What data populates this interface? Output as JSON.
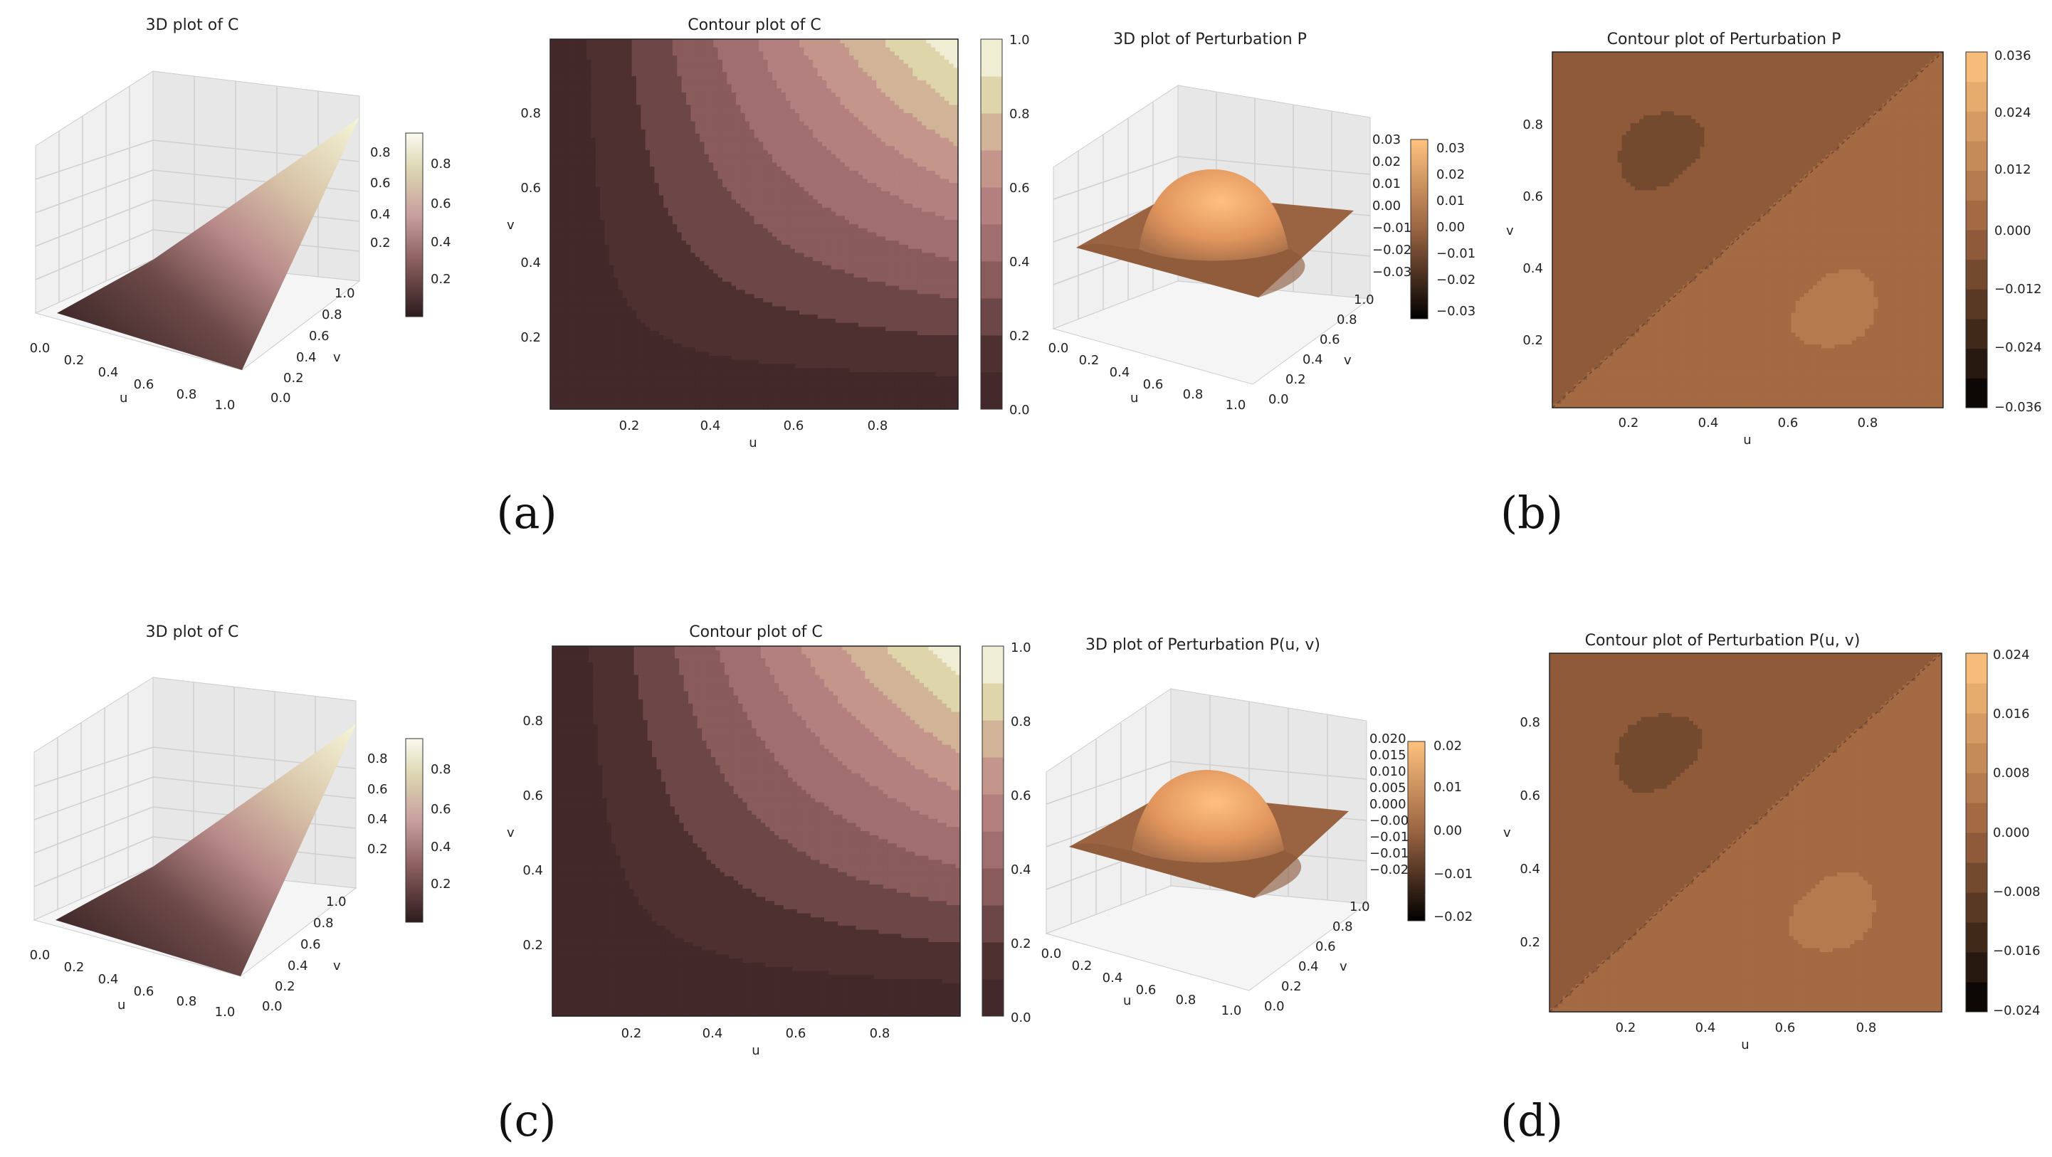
{
  "subfigures": [
    "(a)",
    "(b)",
    "(c)",
    "(d)"
  ],
  "chart_data": [
    {
      "id": "a1",
      "type": "surface",
      "title": "3D plot of C",
      "xlabel": "u",
      "ylabel": "v",
      "x_ticks": [
        "0.0",
        "0.2",
        "0.4",
        "0.6",
        "0.8",
        "1.0"
      ],
      "y_ticks": [
        "0.0",
        "0.2",
        "0.4",
        "0.6",
        "0.8",
        "1.0"
      ],
      "z_ticks": [
        "0.2",
        "0.4",
        "0.6",
        "0.8"
      ],
      "colorbar_ticks": [
        "0.2",
        "0.4",
        "0.6",
        "0.8"
      ],
      "colorbar_range": [
        0.0,
        0.95
      ],
      "colormap": "pink",
      "zlim": [
        0,
        1
      ]
    },
    {
      "id": "a2",
      "type": "contour",
      "title": "Contour plot of C",
      "xlabel": "u",
      "ylabel": "v",
      "x_ticks": [
        "0.2",
        "0.4",
        "0.6",
        "0.8"
      ],
      "y_ticks": [
        "0.2",
        "0.4",
        "0.6",
        "0.8"
      ],
      "colorbar_ticks": [
        "0.0",
        "0.2",
        "0.4",
        "0.6",
        "0.8",
        "1.0"
      ],
      "levels": [
        0.0,
        0.1,
        0.2,
        0.3,
        0.4,
        0.5,
        0.6,
        0.7,
        0.8,
        0.9,
        1.0
      ],
      "xlim": [
        0.01,
        0.99
      ],
      "ylim": [
        0.01,
        0.99
      ],
      "colormap": "pink",
      "theta": 0.45
    },
    {
      "id": "b1",
      "type": "surface",
      "title": "3D plot of Perturbation P",
      "xlabel": "u",
      "ylabel": "v",
      "x_ticks": [
        "0.0",
        "0.2",
        "0.4",
        "0.6",
        "0.8",
        "1.0"
      ],
      "y_ticks": [
        "0.0",
        "0.2",
        "0.4",
        "0.6",
        "0.8",
        "1.0"
      ],
      "z_ticks": [
        "0.03",
        "0.02",
        "0.01",
        "0.00",
        "−0.01",
        "−0.02",
        "−0.03"
      ],
      "colorbar_ticks": [
        "0.03",
        "0.02",
        "0.01",
        "0.00",
        "−0.01",
        "−0.02",
        "−0.03"
      ],
      "colorbar_range": [
        -0.035,
        0.035
      ],
      "colormap": "copper"
    },
    {
      "id": "b2",
      "type": "contour",
      "title": "Contour plot of Perturbation P",
      "xlabel": "u",
      "ylabel": "v",
      "x_ticks": [
        "0.2",
        "0.4",
        "0.6",
        "0.8"
      ],
      "y_ticks": [
        "0.2",
        "0.4",
        "0.6",
        "0.8"
      ],
      "colorbar_ticks": [
        "0.036",
        "0.024",
        "0.012",
        "0.000",
        "−0.012",
        "−0.024",
        "−0.036"
      ],
      "levels": [
        -0.036,
        -0.03,
        -0.024,
        -0.018,
        -0.012,
        -0.006,
        0.0,
        0.006,
        0.012,
        0.018,
        0.024,
        0.03,
        0.036
      ],
      "xlim": [
        0.01,
        0.99
      ],
      "ylim": [
        0.01,
        0.99
      ],
      "colormap": "copper",
      "amplitude": 0.036
    },
    {
      "id": "c1",
      "type": "surface",
      "title": "3D plot of C",
      "xlabel": "u",
      "ylabel": "v",
      "x_ticks": [
        "0.0",
        "0.2",
        "0.4",
        "0.6",
        "0.8",
        "1.0"
      ],
      "y_ticks": [
        "0.0",
        "0.2",
        "0.4",
        "0.6",
        "0.8",
        "1.0"
      ],
      "z_ticks": [
        "0.2",
        "0.4",
        "0.6",
        "0.8"
      ],
      "colorbar_ticks": [
        "0.2",
        "0.4",
        "0.6",
        "0.8"
      ],
      "colorbar_range": [
        0.0,
        0.95
      ],
      "colormap": "pink",
      "zlim": [
        0,
        1
      ]
    },
    {
      "id": "c2",
      "type": "contour",
      "title": "Contour plot of C",
      "xlabel": "u",
      "ylabel": "v",
      "x_ticks": [
        "0.2",
        "0.4",
        "0.6",
        "0.8"
      ],
      "y_ticks": [
        "0.2",
        "0.4",
        "0.6",
        "0.8"
      ],
      "colorbar_ticks": [
        "0.0",
        "0.2",
        "0.4",
        "0.6",
        "0.8",
        "1.0"
      ],
      "levels": [
        0.0,
        0.1,
        0.2,
        0.3,
        0.4,
        0.5,
        0.6,
        0.7,
        0.8,
        0.9,
        1.0
      ],
      "xlim": [
        0.01,
        0.99
      ],
      "ylim": [
        0.01,
        0.99
      ],
      "colormap": "pink",
      "theta": 0.3
    },
    {
      "id": "d1",
      "type": "surface",
      "title": "3D plot of Perturbation P(u, v)",
      "xlabel": "u",
      "ylabel": "v",
      "x_ticks": [
        "0.0",
        "0.2",
        "0.4",
        "0.6",
        "0.8",
        "1.0"
      ],
      "y_ticks": [
        "0.0",
        "0.2",
        "0.4",
        "0.6",
        "0.8",
        "1.0"
      ],
      "z_ticks": [
        "0.020",
        "0.015",
        "0.010",
        "0.005",
        "0.000",
        "−0.005",
        "−0.010",
        "−0.015",
        "−0.020"
      ],
      "colorbar_ticks": [
        "0.02",
        "0.01",
        "0.00",
        "−0.01",
        "−0.02"
      ],
      "colorbar_range": [
        -0.024,
        0.024
      ],
      "colormap": "copper"
    },
    {
      "id": "d2",
      "type": "contour",
      "title": "Contour plot of Perturbation P(u, v)",
      "xlabel": "u",
      "ylabel": "v",
      "x_ticks": [
        "0.2",
        "0.4",
        "0.6",
        "0.8"
      ],
      "y_ticks": [
        "0.2",
        "0.4",
        "0.6",
        "0.8"
      ],
      "colorbar_ticks": [
        "0.024",
        "0.016",
        "0.008",
        "0.000",
        "−0.008",
        "−0.016",
        "−0.024"
      ],
      "levels": [
        -0.024,
        -0.02,
        -0.016,
        -0.012,
        -0.008,
        -0.004,
        0.0,
        0.004,
        0.008,
        0.012,
        0.016,
        0.02,
        0.024
      ],
      "xlim": [
        0.01,
        0.99
      ],
      "ylim": [
        0.01,
        0.99
      ],
      "colormap": "copper",
      "amplitude": 0.024
    }
  ]
}
